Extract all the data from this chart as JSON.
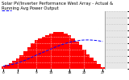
{
  "title": "Solar PV/Inverter Performance West Array - Actual & Running Avg Power Output",
  "bar_color": "#ff0000",
  "line_color": "#0000ff",
  "figure_bg": "#ffffff",
  "plot_bg": "#ffffff",
  "grid_color": "#ffffff",
  "grid_linestyle": "dotted",
  "bar_values": [
    0.4,
    0.6,
    0.9,
    1.2,
    1.6,
    2.1,
    2.7,
    3.4,
    4.0,
    4.5,
    4.8,
    5.0,
    5.2,
    5.5,
    5.8,
    5.8,
    5.7,
    5.5,
    5.2,
    4.8,
    4.3,
    3.7,
    3.0,
    2.3,
    1.7,
    1.2,
    0.7,
    0.3
  ],
  "avg_values": [
    0.4,
    0.5,
    0.63,
    0.78,
    0.94,
    1.13,
    1.35,
    1.6,
    1.87,
    2.13,
    2.38,
    2.62,
    2.85,
    3.1,
    3.35,
    3.58,
    3.79,
    3.98,
    4.14,
    4.28,
    4.38,
    4.46,
    4.5,
    4.51,
    4.49,
    4.44,
    4.37,
    4.27
  ],
  "ymax": 9,
  "ytick_vals": [
    0,
    1,
    2,
    3,
    4,
    5,
    6,
    7,
    8,
    9
  ],
  "num_bars": 28,
  "title_fontsize": 3.8,
  "tick_fontsize": 3.2,
  "right_panel_color": "#e8e8e8"
}
